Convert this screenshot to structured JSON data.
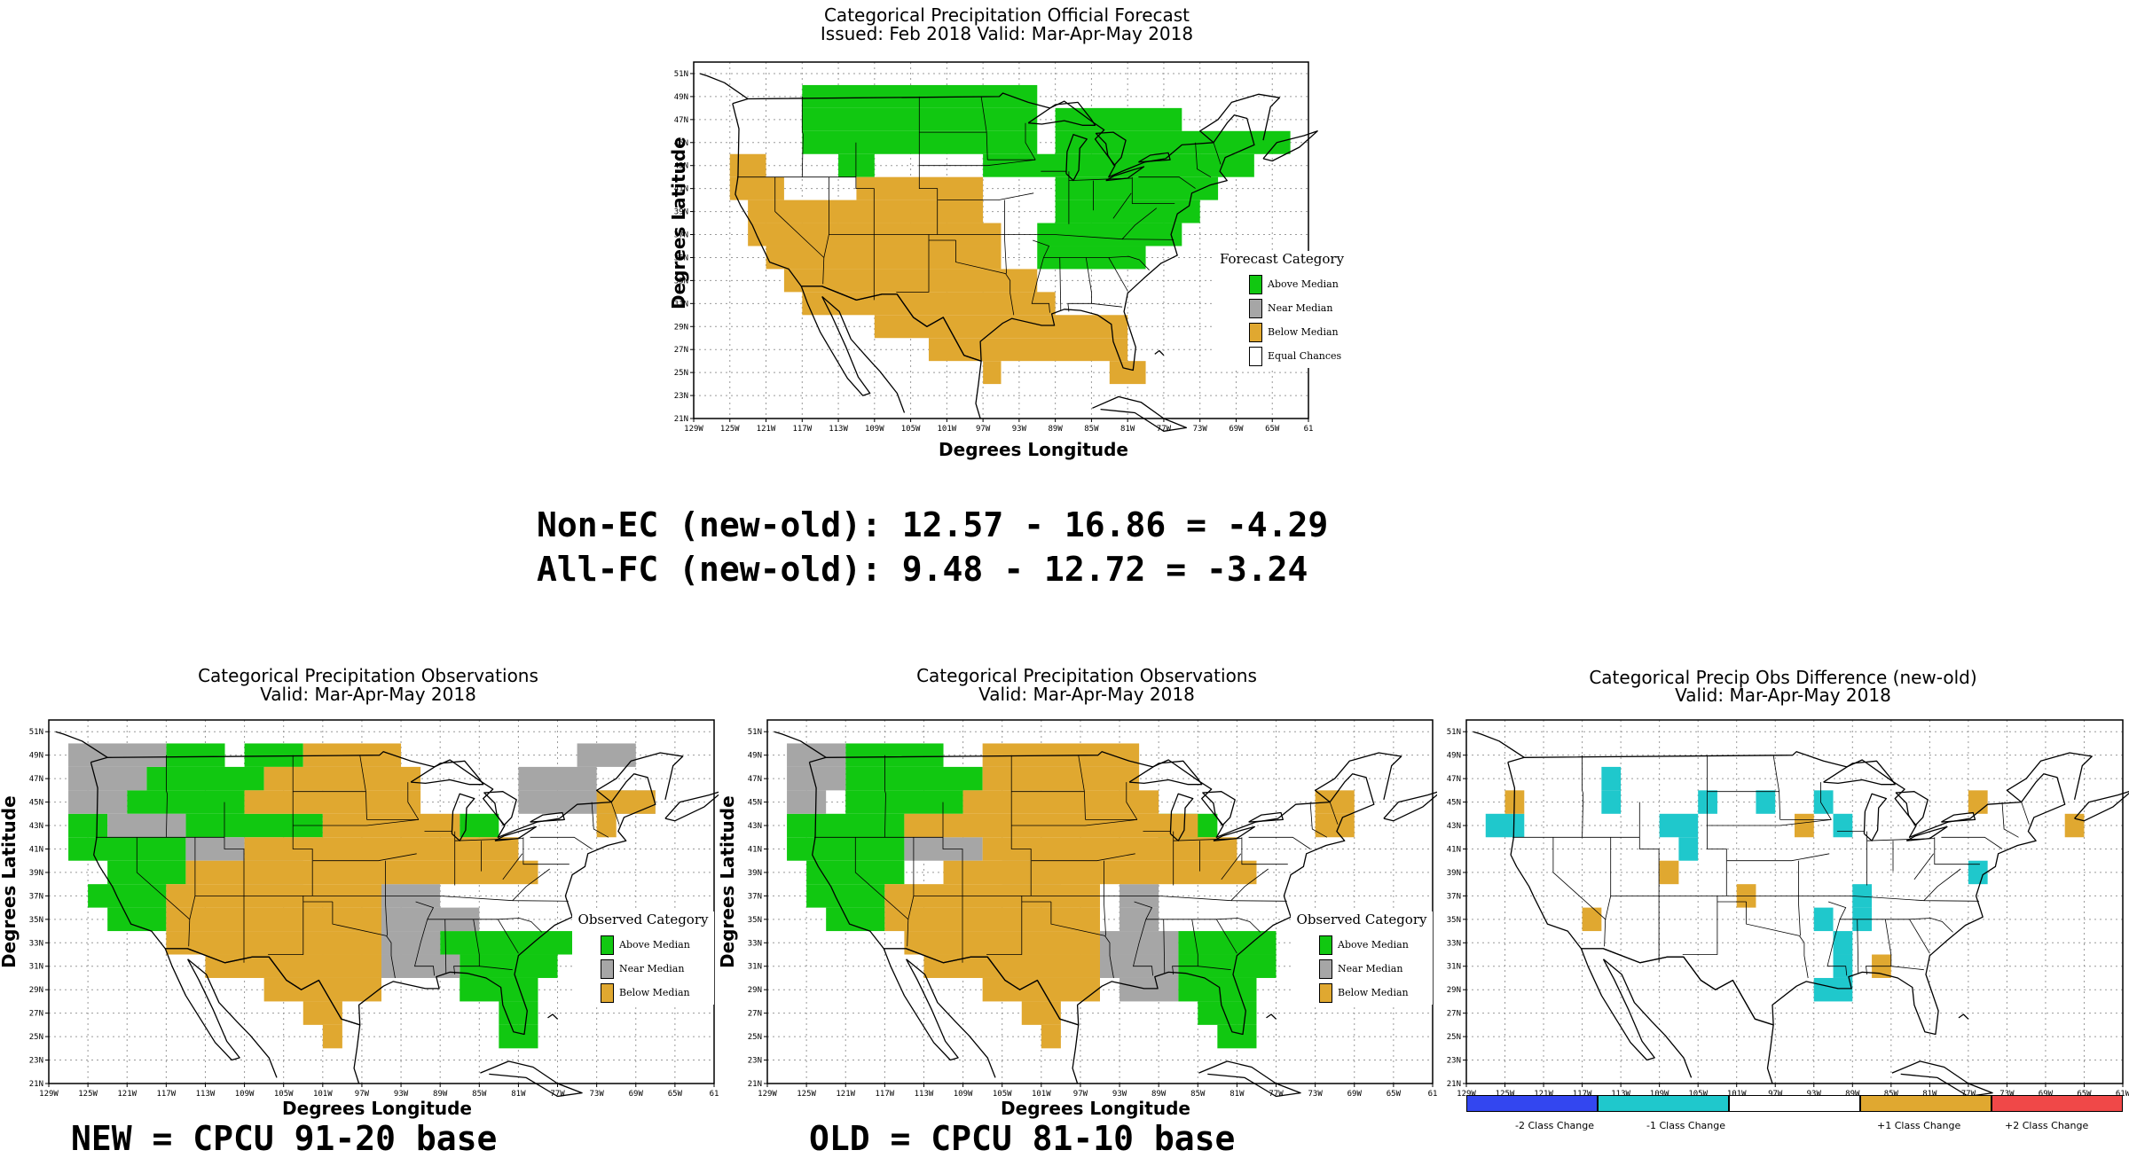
{
  "colors": {
    "above": "#11c811",
    "near": "#a6a6a6",
    "below": "#e0a830",
    "equal": "#ffffff",
    "minus2": "#3346f0",
    "minus1": "#1fc8cc",
    "plus1": "#e0a830",
    "plus2": "#f04848"
  },
  "forecast": {
    "title": "Categorical Precipitation Official Forecast",
    "subtitle": "Issued: Feb 2018 Valid: Mar-Apr-May 2018",
    "ylabel": "Degrees Latitude",
    "xlabel": "Degrees Longitude",
    "legend_title": "Forecast Category",
    "legend": [
      "Above Median",
      "Near Median",
      "Below Median",
      "Equal Chances"
    ]
  },
  "stats": {
    "line1": "Non-EC (new-old): 12.57 - 16.86 = -4.29",
    "line2": "All-FC (new-old): 9.48 - 12.72 = -3.24"
  },
  "obs_new": {
    "title": "Categorical Precipitation Observations",
    "subtitle": "Valid: Mar-Apr-May 2018",
    "ylabel": "Degrees Latitude",
    "xlabel": "Degrees Longitude",
    "legend_title": "Observed Category",
    "legend": [
      "Above Median",
      "Near Median",
      "Below Median"
    ],
    "caption": "NEW = CPCU 91-20 base"
  },
  "obs_old": {
    "title": "Categorical Precipitation Observations",
    "subtitle": "Valid: Mar-Apr-May 2018",
    "ylabel": "Degrees Latitude",
    "xlabel": "Degrees Longitude",
    "legend_title": "Observed Category",
    "legend": [
      "Above Median",
      "Near Median",
      "Below Median"
    ],
    "caption": "OLD = CPCU 81-10 base"
  },
  "diff": {
    "title": "Categorical Precip Obs Difference (new-old)",
    "subtitle": "Valid: Mar-Apr-May 2018",
    "colorbar_labels": [
      "-2 Class Change",
      "-1 Class Change",
      "+1 Class Change",
      "+2 Class Change"
    ]
  },
  "axes": {
    "lat_ticks": [
      "21N",
      "23N",
      "25N",
      "27N",
      "29N",
      "31N",
      "33N",
      "35N",
      "37N",
      "39N",
      "41N",
      "43N",
      "45N",
      "47N",
      "49N",
      "51N"
    ],
    "lon_ticks": [
      "129W",
      "125W",
      "121W",
      "117W",
      "113W",
      "109W",
      "105W",
      "101W",
      "97W",
      "93W",
      "89W",
      "85W",
      "81W",
      "77W",
      "73W",
      "69W",
      "65W",
      "61W"
    ],
    "lon_ticks_fc": [
      "129W",
      "125W",
      "121W",
      "117W",
      "113W",
      "109W",
      "105W",
      "101W",
      "97W",
      "93W",
      "89W",
      "85W",
      "81W",
      "77W",
      "73W",
      "69W",
      "65W",
      "61"
    ],
    "lon_ticks_obs": [
      "129W",
      "125W",
      "121W",
      "117W",
      "113W",
      "109W",
      "105W",
      "101W",
      "97W",
      "93W",
      "89W",
      "85W",
      "81W",
      "77W",
      "73W",
      "69W",
      "65W",
      "61"
    ]
  },
  "maps": {
    "forecast": {
      "A": [
        "49:-117..-91",
        "47:-117..-91",
        "47:-89..-75",
        "45:-117..-91",
        "45:-89..-63",
        "43:-113..-109",
        "43:-97..-67",
        "41:-89..-71",
        "39:-89..-73",
        "37:-91..-75",
        "35:-91..-79"
      ],
      "B": [
        "43:-125..-121",
        "41:-125..-119",
        "41:-111..-97",
        "39:-123..-97",
        "37:-123..-95",
        "35:-121..-95",
        "33:-119..-91",
        "31:-117..-89",
        "29:-109..-81",
        "27:-103..-81",
        "25:-97..-95",
        "25:-83..-79"
      ]
    },
    "obs_new": {
      "A": [
        "49:-117..-111",
        "49:-109..-103",
        "47:-119..-107",
        "45:-121..-109",
        "43:-127..-123",
        "43:-115..-101",
        "43:-87..-83",
        "41:-127..-115",
        "39:-123..-115",
        "37:-125..-117",
        "35:-123..-117",
        "33:-89..-75",
        "31:-87..-77",
        "29:-87..-79",
        "27:-83..-79",
        "25:-83..-79"
      ],
      "N": [
        "49:-127..-117",
        "47:-127..-119",
        "45:-127..-121",
        "43:-123..-115",
        "41:-115..-109",
        "39:-109..-103",
        "37:-95..-89",
        "35:-95..-85",
        "33:-95..-89",
        "31:-95..-87",
        "49:-75..-69",
        "47:-81..-73",
        "45:-81..-67"
      ],
      "B": [
        "49:-103..-93",
        "47:-107..-91",
        "45:-109..-91",
        "43:-101..-87",
        "41:-109..-81",
        "39:-115..-79",
        "37:-117..-95",
        "35:-117..-95",
        "33:-117..-95",
        "31:-113..-95",
        "29:-107..-95",
        "27:-103..-99",
        "25:-101..-99",
        "45:-73..-67",
        "43:-73..-71"
      ]
    },
    "obs_old": {
      "A": [
        "49:-121..-111",
        "47:-121..-107",
        "45:-121..-109",
        "43:-127..-115",
        "41:-127..-115",
        "39:-125..-115",
        "37:-125..-117",
        "35:-123..-117",
        "33:-87..-77",
        "31:-87..-77",
        "29:-87..-79",
        "27:-85..-79",
        "25:-83..-79",
        "43:-89..-83"
      ],
      "N": [
        "49:-127..-121",
        "47:-127..-121",
        "45:-127..-123",
        "41:-115..-107",
        "39:-105..-99",
        "37:-93..-89",
        "35:-93..-89",
        "33:-95..-87",
        "31:-95..-87",
        "29:-93..-87"
      ],
      "B": [
        "49:-107..-91",
        "47:-107..-91",
        "45:-109..-89",
        "43:-115..-85",
        "41:-107..-81",
        "39:-111..-79",
        "37:-117..-95",
        "35:-117..-95",
        "33:-115..-95",
        "31:-113..-95",
        "29:-107..-95",
        "27:-103..-99",
        "25:-101..-99",
        "45:-73..-69",
        "43:-73..-69"
      ]
    },
    "diff": {
      "M": [
        "47:-115..-113",
        "45:-105..-103",
        "45:-115..-113",
        "43:-127..-123",
        "43:-109..-105",
        "41:-107..-105",
        "45:-93..-91",
        "43:-91..-89",
        "37:-89..-87",
        "35:-93..-91",
        "35:-89..-87",
        "33:-91..-89",
        "31:-91..-89",
        "29:-93..-89",
        "45:-99..-97",
        "39:-77..-75"
      ],
      "P": [
        "45:-125..-123",
        "35:-117..-115",
        "39:-109..-107",
        "37:-101..-99",
        "43:-95..-93",
        "31:-87..-85",
        "45:-77..-75",
        "43:-67..-65"
      ]
    }
  }
}
